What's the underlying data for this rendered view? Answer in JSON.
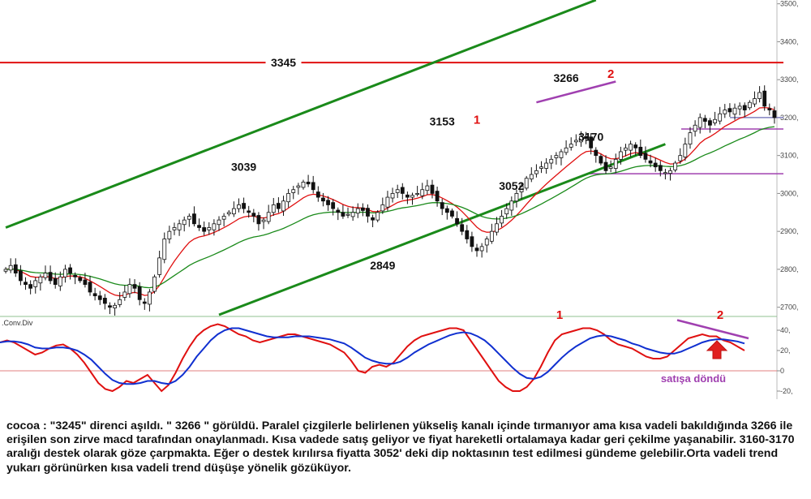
{
  "chart_data": [
    {
      "type": "candlestick",
      "title": "",
      "yaxis_ticks": [
        "3500,",
        "3400,",
        "3300,",
        "3200,",
        "3100,",
        "3000,",
        "2900,",
        "2800,",
        "2700,"
      ],
      "ylim": [
        2680,
        3510
      ],
      "y_tick_values": [
        3500,
        3400,
        3300,
        3200,
        3100,
        3000,
        2900,
        2800,
        2700
      ],
      "price_series": [
        2800,
        2810,
        2790,
        2770,
        2760,
        2750,
        2770,
        2780,
        2790,
        2770,
        2760,
        2780,
        2800,
        2790,
        2780,
        2770,
        2760,
        2740,
        2730,
        2720,
        2710,
        2700,
        2705,
        2720,
        2740,
        2760,
        2750,
        2720,
        2710,
        2740,
        2780,
        2830,
        2880,
        2900,
        2910,
        2920,
        2930,
        2940,
        2920,
        2910,
        2900,
        2910,
        2920,
        2930,
        2940,
        2950,
        2960,
        2970,
        2960,
        2950,
        2940,
        2920,
        2930,
        2950,
        2970,
        2960,
        2980,
        3000,
        3010,
        3020,
        3030,
        3025,
        3010,
        2990,
        2980,
        2970,
        2960,
        2950,
        2940,
        2945,
        2950,
        2960,
        2955,
        2940,
        2930,
        2950,
        2970,
        2990,
        3000,
        3010,
        3000,
        2990,
        2995,
        3000,
        3010,
        3020,
        3000,
        2980,
        2960,
        2950,
        2940,
        2920,
        2900,
        2880,
        2860,
        2849,
        2860,
        2880,
        2900,
        2920,
        2940,
        2960,
        2980,
        3000,
        3020,
        3040,
        3050,
        3060,
        3070,
        3080,
        3090,
        3100,
        3110,
        3120,
        3130,
        3140,
        3150,
        3145,
        3120,
        3100,
        3080,
        3060,
        3070,
        3090,
        3110,
        3120,
        3130,
        3120,
        3100,
        3090,
        3080,
        3070,
        3060,
        3055,
        3060,
        3080,
        3100,
        3130,
        3160,
        3180,
        3200,
        3190,
        3180,
        3195,
        3210,
        3220,
        3215,
        3225,
        3230,
        3220,
        3240,
        3250,
        3266,
        3230,
        3220,
        3200
      ],
      "indicators": [
        {
          "name": "EMA fast",
          "color": "#e01010",
          "period": 10
        },
        {
          "name": "EMA slow",
          "color": "#1a8a1a",
          "period": 30
        }
      ],
      "annotations": [
        {
          "text": "3345",
          "x_idx": 56,
          "y": 3345,
          "style": "label"
        },
        {
          "text": "3039",
          "x_idx": 48,
          "y": 3070,
          "style": "label"
        },
        {
          "text": "3153",
          "x_idx": 88,
          "y": 3190,
          "style": "label"
        },
        {
          "text": "1",
          "x_idx": 95,
          "y": 3195,
          "style": "red"
        },
        {
          "text": "3266",
          "x_idx": 113,
          "y": 3305,
          "style": "label"
        },
        {
          "text": "2",
          "x_idx": 122,
          "y": 3315,
          "style": "red"
        },
        {
          "text": "3170",
          "x_idx": 118,
          "y": 3150,
          "style": "label"
        },
        {
          "text": "3052",
          "x_idx": 102,
          "y": 3020,
          "style": "label"
        },
        {
          "text": "2849",
          "x_idx": 76,
          "y": 2810,
          "style": "label"
        }
      ],
      "horizontal_levels": [
        {
          "value": 3345,
          "color": "#e01010"
        },
        {
          "value": 3170,
          "color": "#a040b0"
        },
        {
          "value": 3052,
          "color": "#a040b0"
        },
        {
          "value": 3200,
          "color": "#8080c0"
        }
      ],
      "channel": {
        "color": "#1a8a1a",
        "upper": [
          {
            "x_idx": 0,
            "y": 2910
          },
          {
            "x_idx": 119,
            "y": 3510
          }
        ],
        "lower": [
          {
            "x_idx": 43,
            "y": 2680
          },
          {
            "x_idx": 133,
            "y": 3130
          }
        ]
      },
      "resistance_trend": {
        "color": "#a040b0",
        "from": {
          "x_idx": 107,
          "y": 3240
        },
        "to": {
          "x_idx": 123,
          "y": 3295
        }
      }
    },
    {
      "type": "line",
      "title": "",
      "indicator_label": ".Conv.Div",
      "yaxis_ticks": [
        "40,",
        "20,",
        "0",
        "-20,"
      ],
      "y_tick_values": [
        40,
        20,
        0,
        -20
      ],
      "ylim": [
        -28,
        52
      ],
      "zero_line_color": "#e08080",
      "series": [
        {
          "name": "MACD",
          "color": "#e01010",
          "values": [
            28,
            30,
            28,
            24,
            20,
            16,
            18,
            22,
            25,
            26,
            22,
            16,
            8,
            -2,
            -12,
            -18,
            -20,
            -16,
            -10,
            -12,
            -8,
            -4,
            -12,
            -20,
            -14,
            -2,
            12,
            24,
            34,
            40,
            44,
            46,
            44,
            40,
            36,
            34,
            30,
            28,
            30,
            32,
            34,
            36,
            36,
            34,
            32,
            30,
            28,
            26,
            22,
            18,
            10,
            0,
            -2,
            4,
            6,
            4,
            8,
            16,
            24,
            30,
            34,
            36,
            38,
            40,
            42,
            42,
            40,
            30,
            20,
            10,
            0,
            -10,
            -16,
            -20,
            -20,
            -16,
            -8,
            4,
            18,
            30,
            36,
            38,
            40,
            42,
            42,
            40,
            36,
            30,
            26,
            24,
            22,
            18,
            14,
            12,
            12,
            14,
            20,
            26,
            32,
            34,
            36,
            34,
            34,
            30,
            28,
            24,
            20
          ]
        },
        {
          "name": "Signal",
          "color": "#1030d0",
          "values": [
            28,
            29,
            29,
            28,
            26,
            23,
            22,
            22,
            23,
            23,
            22,
            20,
            16,
            11,
            4,
            -3,
            -9,
            -12,
            -13,
            -13,
            -12,
            -10,
            -10,
            -12,
            -13,
            -10,
            -4,
            4,
            14,
            22,
            30,
            36,
            40,
            42,
            42,
            40,
            38,
            36,
            34,
            33,
            33,
            33,
            34,
            34,
            34,
            33,
            32,
            31,
            29,
            27,
            23,
            18,
            13,
            10,
            8,
            7,
            7,
            9,
            13,
            18,
            22,
            26,
            29,
            32,
            35,
            37,
            38,
            37,
            34,
            30,
            24,
            17,
            10,
            3,
            -3,
            -7,
            -8,
            -6,
            -1,
            6,
            13,
            19,
            24,
            28,
            32,
            34,
            35,
            34,
            32,
            30,
            27,
            25,
            22,
            20,
            18,
            17,
            17,
            19,
            22,
            25,
            28,
            30,
            31,
            31,
            30,
            29,
            27
          ]
        }
      ],
      "annotations": [
        {
          "text": "1",
          "style": "red"
        },
        {
          "text": "2",
          "style": "red"
        },
        {
          "text": "satışa döndü",
          "style": "purple"
        }
      ]
    }
  ],
  "commentary": "cocoa : \"3245\" direnci aşıldı. \" 3266 \" görüldü. Paralel çizgilerle belirlenen yükseliş kanalı içinde tırmanıyor ama kısa vadeli bakıldığında 3266 ile erişilen son zirve macd tarafından onaylanmadı. Kısa vadede satış geliyor ve fiyat hareketli ortalamaya kadar geri çekilme yaşanabilir. 3160-3170 aralığı destek olarak göze çarpmakta. Eğer o destek kırılırsa fiyatta 3052' deki dip noktasının test edilmesi gündeme gelebilir.Orta vadeli trend yukarı görünürken kısa vadeli trend düşüşe yönelik gözüküyor.",
  "colors": {
    "candle_up": "#ffffff",
    "candle_down": "#111111",
    "candle_outline": "#111111",
    "separator": "#90c090",
    "arrow": "#e02020"
  }
}
